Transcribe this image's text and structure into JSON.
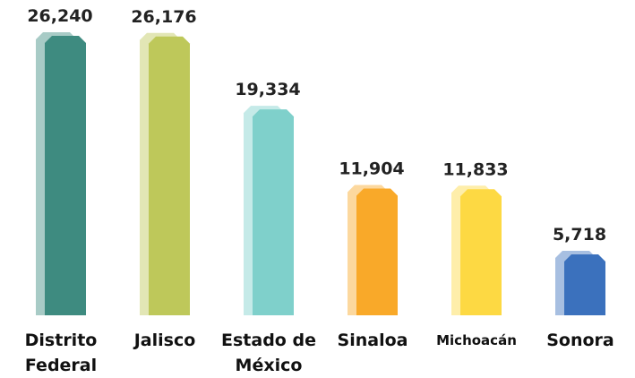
{
  "chart_data": {
    "type": "bar",
    "categories": [
      "Distrito Federal",
      "Jalisco",
      "Estado de México",
      "Sinaloa",
      "Michoacán",
      "Sonora"
    ],
    "values": [
      26240,
      26176,
      19334,
      11904,
      11833,
      5718
    ],
    "value_labels": [
      "26,240",
      "26,176",
      "19,334",
      "11,904",
      "11,833",
      "5,718"
    ],
    "colors": [
      "#3e8b80",
      "#bec85a",
      "#7fd0cb",
      "#f9a929",
      "#fdd943",
      "#3b71bd"
    ]
  }
}
